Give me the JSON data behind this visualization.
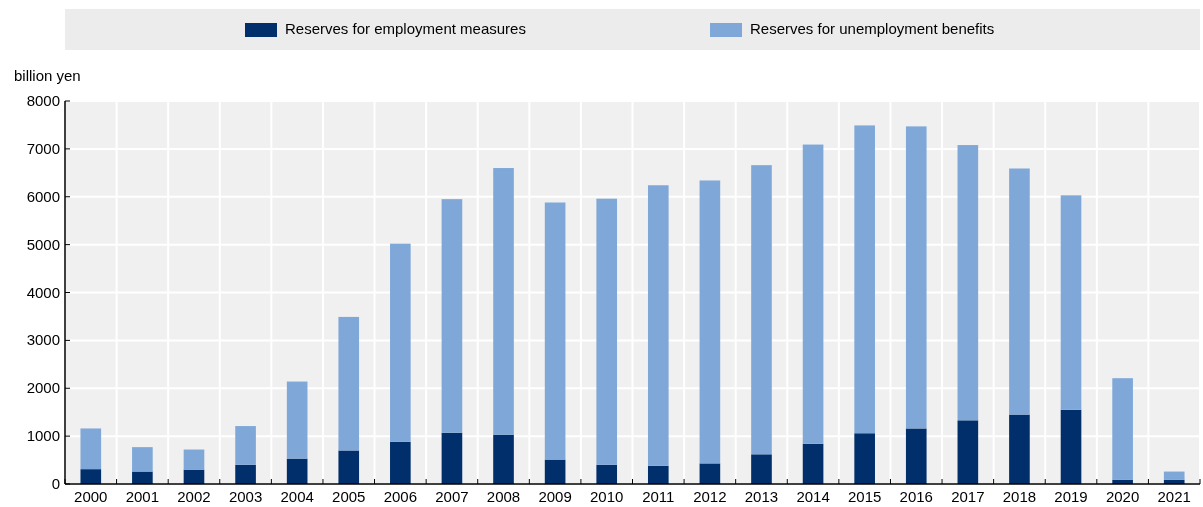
{
  "chart_data": {
    "type": "bar",
    "stacked": true,
    "ylabel": "billion yen",
    "categories": [
      "2000",
      "2001",
      "2002",
      "2003",
      "2004",
      "2005",
      "2006",
      "2007",
      "2008",
      "2009",
      "2010",
      "2011",
      "2012",
      "2013",
      "2014",
      "2015",
      "2016",
      "2017",
      "2018",
      "2019",
      "2020",
      "2021"
    ],
    "series": [
      {
        "name": "Reserves for employment measures",
        "color": "#002f6c",
        "values": [
          310,
          260,
          300,
          400,
          530,
          700,
          880,
          1070,
          1030,
          510,
          400,
          380,
          430,
          620,
          840,
          1060,
          1160,
          1330,
          1450,
          1550,
          90,
          90
        ]
      },
      {
        "name": "Reserves for unemployment benefits",
        "color": "#7fa8d9",
        "values": [
          850,
          510,
          420,
          810,
          1610,
          2790,
          4140,
          4880,
          5570,
          5370,
          5560,
          5860,
          5910,
          6040,
          6250,
          6430,
          6310,
          5750,
          5140,
          4480,
          2120,
          170
        ]
      }
    ],
    "ylim": [
      0,
      8000
    ],
    "yticks": [
      0,
      1000,
      2000,
      3000,
      4000,
      5000,
      6000,
      7000,
      8000
    ],
    "grid": true,
    "legend": "top"
  }
}
